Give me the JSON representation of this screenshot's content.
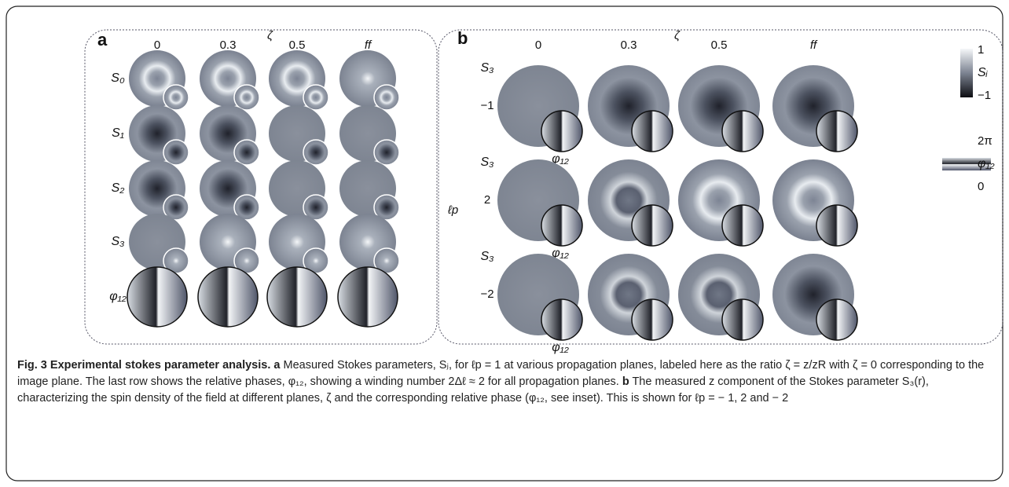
{
  "panel_a": {
    "label": "a",
    "axis_label": "ζ",
    "columns": [
      "0",
      "0.3",
      "0.5",
      "ff"
    ],
    "rows": [
      "S₀",
      "S₁",
      "S₂",
      "S₃",
      "φ₁₂"
    ]
  },
  "panel_b": {
    "label": "b",
    "axis_label": "ζ",
    "columns": [
      "0",
      "0.3",
      "0.5",
      "ff"
    ],
    "row_axis_label": "ℓp",
    "rows": [
      {
        "value": "−1",
        "top_label": "S₃",
        "inset_label": "φ₁₂"
      },
      {
        "value": "2",
        "top_label": "S₃",
        "inset_label": "φ₁₂"
      },
      {
        "value": "−2",
        "top_label": "S₃",
        "inset_label": "φ₁₂"
      }
    ],
    "colorbars": [
      {
        "top": "1",
        "label": "Sᵢ",
        "bottom": "−1"
      },
      {
        "top": "2π",
        "label": "φ₁₂",
        "bottom": "0"
      }
    ]
  },
  "caption": {
    "title": "Fig. 3 Experimental stokes parameter analysis.",
    "a_label": "a",
    "a_text": " Measured Stokes parameters, Sⱼ, for ℓp = 1 at various propagation planes, labeled here as the ratio ζ = z/zR with ζ = 0 corresponding to the image plane. The last row shows the relative phases, φ₁₂, showing a winding number 2Δℓ ≈ 2 for all propagation planes.",
    "b_label": "b",
    "b_text": " The measured z component of the Stokes parameter S₃(r), characterizing the spin density of the field at different planes, ζ and the corresponding relative phase (φ₁₂, see inset). This is shown for ℓp = − 1, 2 and − 2"
  }
}
